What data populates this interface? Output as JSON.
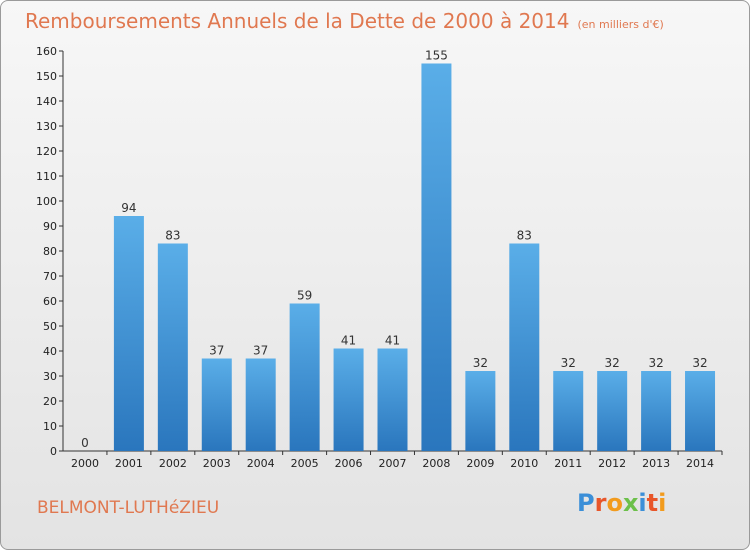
{
  "header": {
    "title": "Remboursements Annuels de la Dette de 2000 à 2014",
    "unit": "(en milliers d'€)"
  },
  "footer": {
    "location": "BELMONT-LUTHéZIEU",
    "logo": {
      "letters": [
        "P",
        "r",
        "o",
        "x",
        "i",
        "t",
        "i"
      ],
      "colors": [
        "#3b8fd8",
        "#e8562a",
        "#f29b1d",
        "#6cc04a",
        "#3b8fd8",
        "#e8562a",
        "#f29b1d"
      ]
    }
  },
  "chart_data": {
    "type": "bar",
    "title": "Remboursements Annuels de la Dette de 2000 à 2014",
    "categories": [
      "2000",
      "2001",
      "2002",
      "2003",
      "2004",
      "2005",
      "2006",
      "2007",
      "2008",
      "2009",
      "2010",
      "2011",
      "2012",
      "2013",
      "2014"
    ],
    "values": [
      0,
      94,
      83,
      37,
      37,
      59,
      41,
      41,
      155,
      32,
      83,
      32,
      32,
      32,
      32
    ],
    "ylim": [
      0,
      160
    ],
    "yticks": [
      0,
      10,
      20,
      30,
      40,
      50,
      60,
      70,
      80,
      90,
      100,
      110,
      120,
      130,
      140,
      150,
      160
    ],
    "grid": false,
    "bar_color": "#3a8fd6"
  }
}
